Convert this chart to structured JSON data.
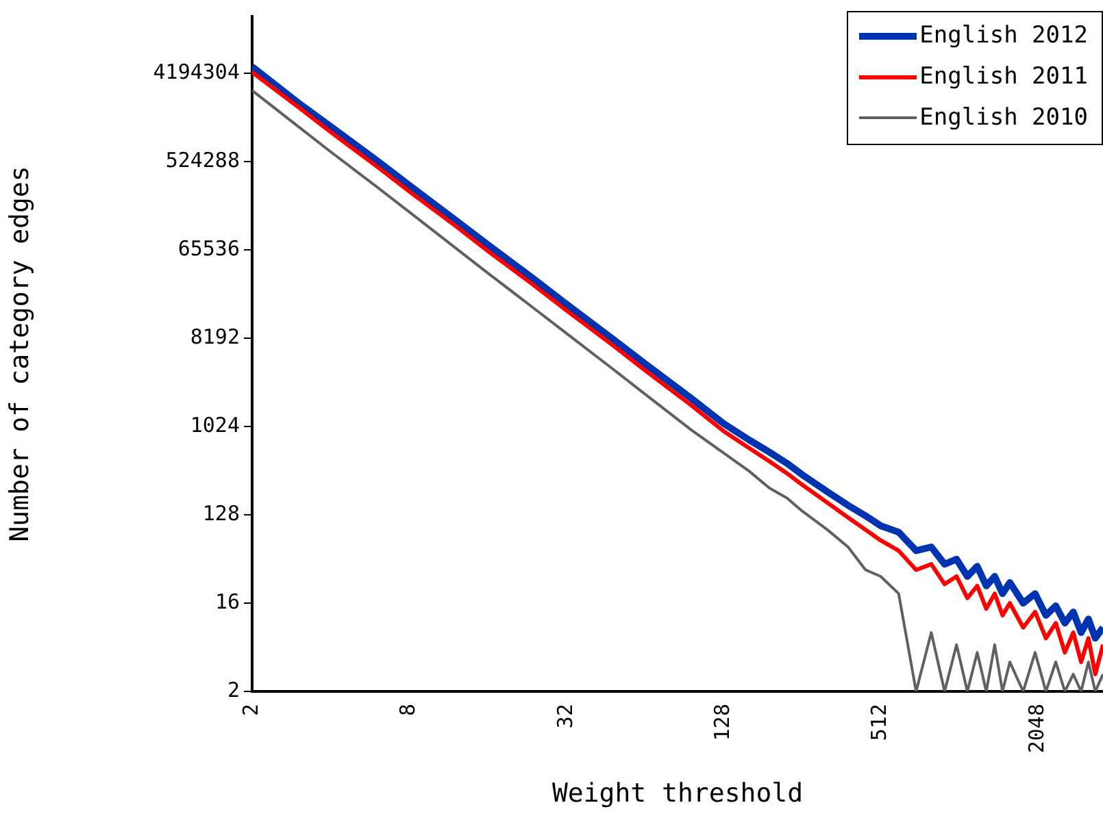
{
  "chart_data": {
    "type": "line",
    "xlabel": "Weight threshold",
    "ylabel": "Number of category edges",
    "log": "xy",
    "grid": false,
    "legend": "top right",
    "marker": "none",
    "line_style": "solid",
    "x": [
      2,
      3,
      4,
      6,
      8,
      12,
      16,
      24,
      32,
      48,
      64,
      96,
      128,
      160,
      192,
      224,
      256,
      320,
      384,
      448,
      512,
      600,
      700,
      800,
      900,
      1000,
      1100,
      1200,
      1300,
      1400,
      1500,
      1600,
      1800,
      2000,
      2200,
      2400,
      2600,
      2800,
      3000,
      3200,
      3400,
      3640
    ],
    "xlim": [
      2,
      3640
    ],
    "xticks": [
      2,
      8,
      32,
      128,
      512,
      2048
    ],
    "ylim": [
      2,
      16000000
    ],
    "yticks": [
      2,
      16,
      128,
      1024,
      8192,
      65536,
      524288,
      4194304
    ],
    "series": [
      {
        "name": "English 2012",
        "color": "#0033b0",
        "values": [
          4900000,
          2100000,
          1200000,
          540000,
          300000,
          133000,
          74000,
          33000,
          18300,
          8100,
          4500,
          2000,
          1100,
          750,
          560,
          430,
          330,
          220,
          160,
          125,
          99,
          85,
          55,
          60,
          40,
          45,
          30,
          38,
          24,
          30,
          20,
          26,
          16,
          20,
          12,
          15,
          10,
          13,
          8,
          11,
          7,
          9
        ]
      },
      {
        "name": "English 2011",
        "color": "#ff0000",
        "values": [
          4300000,
          1900000,
          1050000,
          470000,
          260000,
          116000,
          64000,
          28500,
          15800,
          7000,
          3850,
          1700,
          920,
          620,
          450,
          340,
          260,
          170,
          120,
          90,
          70,
          55,
          35,
          40,
          25,
          30,
          18,
          24,
          14,
          20,
          12,
          16,
          9,
          13,
          7,
          10,
          5,
          8,
          4,
          7,
          3,
          6
        ]
      },
      {
        "name": "English 2010",
        "color": "#606060",
        "values": [
          2800000,
          1200000,
          660000,
          290000,
          160000,
          69000,
          38000,
          16600,
          9200,
          4000,
          2200,
          950,
          550,
          360,
          240,
          190,
          140,
          90,
          60,
          35,
          30,
          20,
          2,
          8,
          2,
          6,
          2,
          5,
          2,
          6,
          2,
          4,
          2,
          5,
          2,
          4,
          2,
          3,
          2,
          4,
          2,
          3
        ]
      }
    ]
  }
}
